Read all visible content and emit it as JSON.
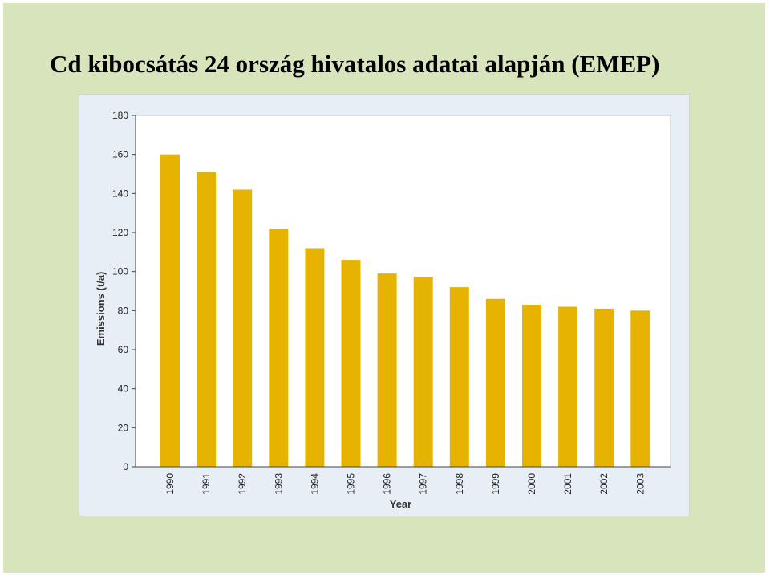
{
  "slide": {
    "title": "Cd kibocsátás 24 ország hivatalos adatai alapján (EMEP)"
  },
  "colors": {
    "background": "#d8e4bc",
    "bar": "#e6b400",
    "plot_area": "#ffffff",
    "panel": "#e8eef5"
  },
  "chart_data": {
    "type": "bar",
    "categories": [
      "1990",
      "1991",
      "1992",
      "1993",
      "1994",
      "1995",
      "1996",
      "1997",
      "1998",
      "1999",
      "2000",
      "2001",
      "2002",
      "2003"
    ],
    "values": [
      160,
      151,
      142,
      122,
      112,
      106,
      99,
      97,
      92,
      86,
      83,
      82,
      81,
      80
    ],
    "title": "",
    "xlabel": "Year",
    "ylabel": "Emissions (t/a)",
    "ylim": [
      0,
      180
    ],
    "yticks": [
      0,
      20,
      40,
      60,
      80,
      100,
      120,
      140,
      160,
      180
    ],
    "grid": "horizontal-dashed",
    "legend": "none"
  }
}
